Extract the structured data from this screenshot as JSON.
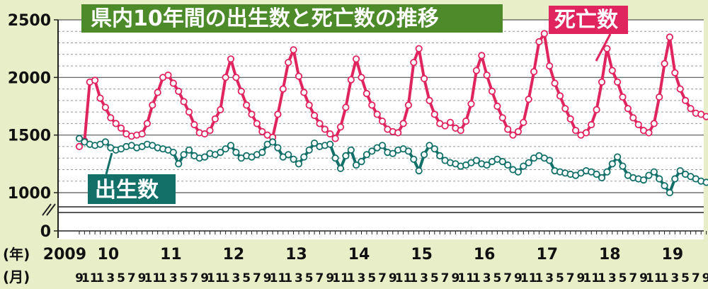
{
  "chart_data": {
    "type": "line",
    "title": "県内10年間の出生数と死亡数の推移",
    "year_axis_label": "(年)",
    "month_axis_label": "(月)",
    "year_labels": [
      {
        "label": "2009",
        "index": 0
      },
      {
        "label": "10",
        "index": 4
      },
      {
        "label": "11",
        "index": 16
      },
      {
        "label": "12",
        "index": 28
      },
      {
        "label": "13",
        "index": 40
      },
      {
        "label": "14",
        "index": 52
      },
      {
        "label": "15",
        "index": 64
      },
      {
        "label": "16",
        "index": 76
      },
      {
        "label": "17",
        "index": 88
      },
      {
        "label": "18",
        "index": 100
      },
      {
        "label": "19",
        "index": 112
      }
    ],
    "month_tick_labels": [
      "9",
      "11",
      "1",
      "3",
      "5",
      "7",
      "9",
      "11",
      "1",
      "3",
      "5",
      "7",
      "9",
      "11",
      "1",
      "3",
      "5",
      "7",
      "9",
      "11",
      "1",
      "3",
      "5",
      "7",
      "9",
      "11",
      "1",
      "3",
      "5",
      "7",
      "9",
      "11",
      "1",
      "3",
      "5",
      "7",
      "9",
      "11",
      "1",
      "3",
      "5",
      "7",
      "9",
      "11",
      "1",
      "3",
      "5",
      "7",
      "9",
      "11",
      "1",
      "3",
      "5",
      "7",
      "9",
      "11",
      "1",
      "3",
      "5",
      "7",
      "9"
    ],
    "y_ticks": [
      0,
      1000,
      1500,
      2000,
      2500
    ],
    "ylim": [
      1000,
      2500
    ],
    "axis_break": true,
    "grid": true,
    "series": [
      {
        "name": "死亡数",
        "color": "#e0245e",
        "x": [
          0,
          1,
          2,
          3,
          4,
          5,
          6,
          7,
          8,
          9,
          10,
          11,
          12,
          13,
          14,
          15,
          16,
          17,
          18,
          19,
          20,
          21,
          22,
          23,
          24,
          25,
          26,
          27,
          28,
          29,
          30,
          31,
          32,
          33,
          34,
          35,
          36,
          37,
          38,
          39,
          40,
          41,
          42,
          43,
          44,
          45,
          46,
          47,
          48,
          49,
          50,
          51,
          52,
          53,
          54,
          55,
          56,
          57,
          58,
          59,
          60,
          61,
          62,
          63,
          64,
          65,
          66,
          67,
          68,
          69,
          70,
          71,
          72,
          73,
          74,
          75,
          76,
          77,
          78,
          79,
          80,
          81,
          82,
          83,
          84,
          85,
          86,
          87,
          88,
          89,
          90,
          91,
          92,
          93,
          94,
          95,
          96,
          97,
          98,
          99,
          100,
          101,
          102,
          103,
          104,
          105,
          106,
          107,
          108,
          109,
          110,
          111,
          112,
          113,
          114,
          115,
          116,
          117,
          118,
          119,
          120,
          121
        ],
        "values": [
          1400,
          1450,
          1960,
          1975,
          1820,
          1740,
          1650,
          1600,
          1560,
          1510,
          1490,
          1500,
          1510,
          1600,
          1760,
          1870,
          2000,
          2020,
          1950,
          1880,
          1790,
          1700,
          1590,
          1520,
          1510,
          1540,
          1640,
          1720,
          2000,
          2160,
          2000,
          1880,
          1760,
          1680,
          1600,
          1530,
          1500,
          1480,
          1680,
          1900,
          2130,
          2240,
          2010,
          1870,
          1760,
          1670,
          1600,
          1550,
          1510,
          1470,
          1570,
          1740,
          1980,
          2160,
          2000,
          1860,
          1760,
          1680,
          1620,
          1550,
          1530,
          1520,
          1600,
          1760,
          2130,
          2250,
          1990,
          1800,
          1680,
          1600,
          1580,
          1610,
          1560,
          1540,
          1620,
          1770,
          2060,
          2190,
          2020,
          1880,
          1750,
          1650,
          1550,
          1500,
          1530,
          1610,
          1810,
          2050,
          2310,
          2380,
          2100,
          1950,
          1840,
          1730,
          1640,
          1540,
          1500,
          1520,
          1590,
          1720,
          1960,
          2250,
          2060,
          1960,
          1830,
          1730,
          1650,
          1590,
          1540,
          1520,
          1600,
          1830,
          2120,
          2350,
          2040,
          1900,
          1800,
          1730,
          1690,
          1680,
          1660,
          1650
        ]
      },
      {
        "name": "出生数",
        "color": "#137068",
        "x": [
          0,
          1,
          2,
          3,
          4,
          5,
          6,
          7,
          8,
          9,
          10,
          11,
          12,
          13,
          14,
          15,
          16,
          17,
          18,
          19,
          20,
          21,
          22,
          23,
          24,
          25,
          26,
          27,
          28,
          29,
          30,
          31,
          32,
          33,
          34,
          35,
          36,
          37,
          38,
          39,
          40,
          41,
          42,
          43,
          44,
          45,
          46,
          47,
          48,
          49,
          50,
          51,
          52,
          53,
          54,
          55,
          56,
          57,
          58,
          59,
          60,
          61,
          62,
          63,
          64,
          65,
          66,
          67,
          68,
          69,
          70,
          71,
          72,
          73,
          74,
          75,
          76,
          77,
          78,
          79,
          80,
          81,
          82,
          83,
          84,
          85,
          86,
          87,
          88,
          89,
          90,
          91,
          92,
          93,
          94,
          95,
          96,
          97,
          98,
          99,
          100,
          101,
          102,
          103,
          104,
          105,
          106,
          107,
          108,
          109,
          110,
          111,
          112,
          113,
          114,
          115,
          116,
          117,
          118,
          119,
          120,
          121
        ],
        "values": [
          1470,
          1440,
          1420,
          1410,
          1420,
          1440,
          1390,
          1370,
          1380,
          1400,
          1410,
          1390,
          1400,
          1420,
          1410,
          1390,
          1380,
          1370,
          1350,
          1250,
          1330,
          1370,
          1320,
          1300,
          1310,
          1340,
          1330,
          1350,
          1380,
          1410,
          1350,
          1300,
          1320,
          1310,
          1330,
          1350,
          1420,
          1440,
          1390,
          1310,
          1330,
          1290,
          1250,
          1310,
          1370,
          1430,
          1400,
          1410,
          1420,
          1300,
          1210,
          1320,
          1370,
          1240,
          1270,
          1330,
          1360,
          1390,
          1410,
          1350,
          1340,
          1370,
          1380,
          1360,
          1290,
          1190,
          1330,
          1410,
          1380,
          1320,
          1280,
          1260,
          1250,
          1230,
          1240,
          1260,
          1280,
          1250,
          1240,
          1270,
          1290,
          1270,
          1240,
          1200,
          1180,
          1230,
          1260,
          1300,
          1320,
          1300,
          1280,
          1190,
          1180,
          1170,
          1160,
          1150,
          1170,
          1190,
          1180,
          1160,
          1130,
          1180,
          1250,
          1310,
          1230,
          1150,
          1130,
          1120,
          1110,
          1150,
          1180,
          1120,
          1060,
          1000,
          1120,
          1190,
          1160,
          1140,
          1120,
          1100,
          1090,
          1060
        ]
      }
    ]
  }
}
